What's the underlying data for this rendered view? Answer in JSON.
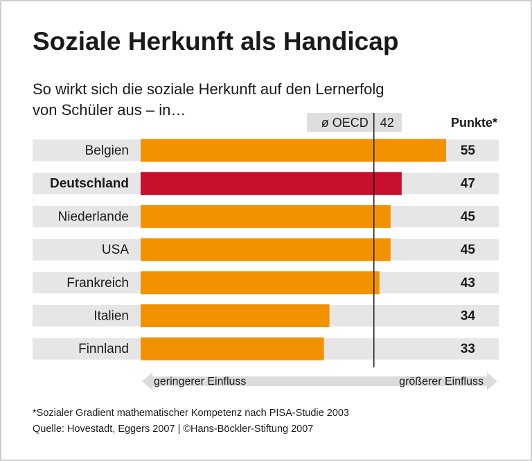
{
  "chart_data": {
    "type": "bar",
    "orientation": "horizontal",
    "title": "Soziale Herkunft als Handicap",
    "subtitle": [
      "So wirkt sich die soziale Herkunft auf den Lernerfolg",
      "von Schüler aus – in…"
    ],
    "value_header": "Punkte*",
    "categories": [
      "Belgien",
      "Deutschland",
      "Niederlande",
      "USA",
      "Frankreich",
      "Italien",
      "Finnland"
    ],
    "values": [
      55,
      47,
      45,
      45,
      43,
      34,
      33
    ],
    "color": "#f39200",
    "highlight": 1,
    "highlight_color": "#c8102e",
    "xlim": [
      0,
      55
    ],
    "reference": {
      "label": "ø OECD",
      "value": 42
    },
    "arrow_labels": [
      "geringerer Einfluss",
      "größerer Einfluss"
    ],
    "footnote": "*Sozialer Gradient mathematischer Kompetenz nach PISA-Studie 2003",
    "source": "Quelle: Hovestadt, Eggers 2007 | ©Hans-Böckler-Stiftung 2007"
  }
}
